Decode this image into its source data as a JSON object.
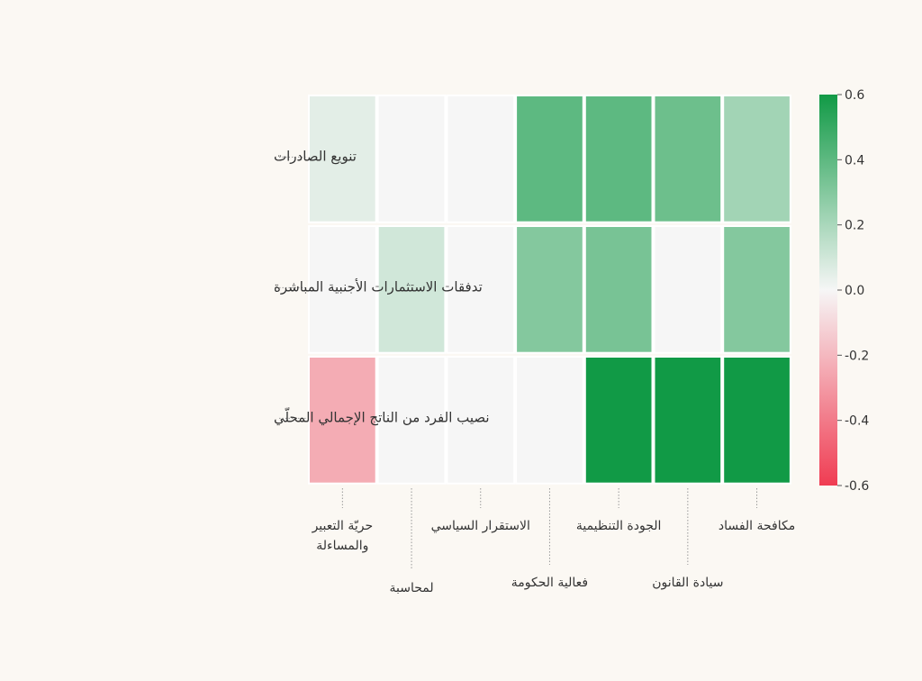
{
  "chart_data": {
    "type": "heatmap",
    "title": "",
    "xlabel": "",
    "ylabel": "",
    "x_categories": [
      "حريّة التعبير والمساءلة",
      "لمحاسبة",
      "الاستقرار السياسي",
      "فعالية الحكومة",
      "الجودة التنظيمية",
      "سيادة القانون",
      "مكافحة الفساد"
    ],
    "y_categories": [
      "تنويع الصادرات",
      "تدفقات الاستثمارات الأجنبية المباشرة",
      "نصيب الفرد من الناتج الإجمالي المحلّي"
    ],
    "values": [
      [
        0.05,
        0.0,
        0.0,
        0.4,
        0.4,
        0.36,
        0.22
      ],
      [
        0.0,
        0.1,
        0.0,
        0.3,
        0.33,
        0.0,
        0.3
      ],
      [
        -0.24,
        0.0,
        0.0,
        0.0,
        0.6,
        0.6,
        0.6
      ]
    ],
    "colorbar": {
      "min": -0.6,
      "max": 0.6,
      "ticks": [
        "0.6",
        "0.4",
        "0.2",
        "0.0",
        "-0.2",
        "-0.4",
        "-0.6"
      ],
      "colors": {
        "negative": "#f03c52",
        "neutral": "#f6f6f6",
        "positive": "#119a46"
      }
    },
    "grid": false,
    "legend_position": "right"
  }
}
